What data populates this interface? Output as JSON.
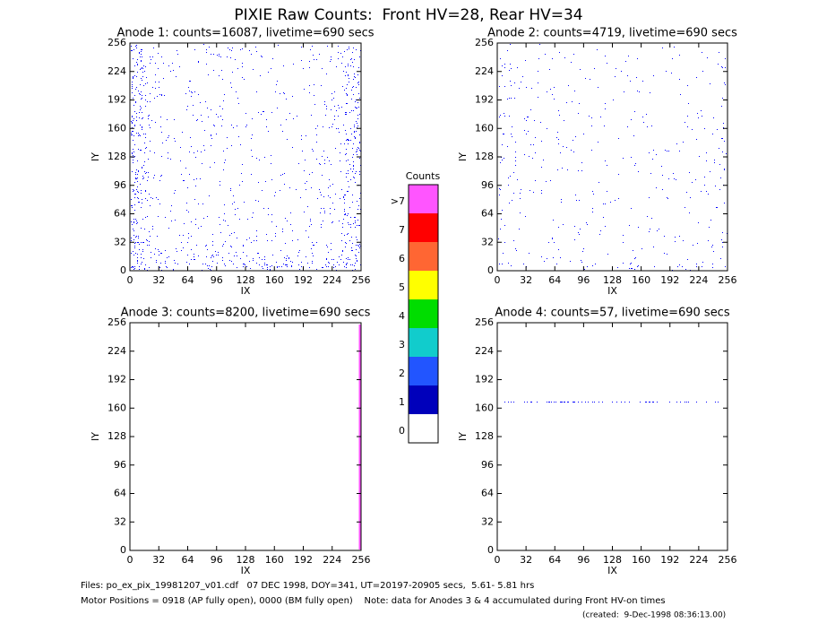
{
  "title": "PIXIE Raw Counts:  Front HV=28, Rear HV=34",
  "panels": [
    {
      "title": "Anode 1: counts=16087, livetime=690 secs",
      "xlabel": "IX",
      "ylabel": "IY",
      "xlim": [
        0,
        256
      ],
      "ylim": [
        0,
        256
      ],
      "xticks": [
        0,
        32,
        64,
        96,
        128,
        160,
        192,
        224,
        256
      ],
      "yticks": [
        0,
        32,
        64,
        96,
        128,
        160,
        192,
        224,
        256
      ]
    },
    {
      "title": "Anode 2: counts=4719, livetime=690 secs",
      "xlabel": "IX",
      "ylabel": "IY",
      "xlim": [
        0,
        256
      ],
      "ylim": [
        0,
        256
      ],
      "xticks": [
        0,
        32,
        64,
        96,
        128,
        160,
        192,
        224,
        256
      ],
      "yticks": [
        0,
        32,
        64,
        96,
        128,
        160,
        192,
        224,
        256
      ]
    },
    {
      "title": "Anode 3: counts=8200, livetime=690 secs",
      "xlabel": "IX",
      "ylabel": "IY",
      "xlim": [
        0,
        256
      ],
      "ylim": [
        0,
        256
      ],
      "xticks": [
        0,
        32,
        64,
        96,
        128,
        160,
        192,
        224,
        256
      ],
      "yticks": [
        0,
        32,
        64,
        96,
        128,
        160,
        192,
        224,
        256
      ]
    },
    {
      "title": "Anode 4: counts=57, livetime=690 secs",
      "xlabel": "IX",
      "ylabel": "IY",
      "xlim": [
        0,
        256
      ],
      "ylim": [
        0,
        256
      ],
      "xticks": [
        0,
        32,
        64,
        96,
        128,
        160,
        192,
        224,
        256
      ],
      "yticks": [
        0,
        32,
        64,
        96,
        128,
        160,
        192,
        224,
        256
      ]
    }
  ],
  "colorbar": {
    "title": "Counts",
    "labels": [
      ">7",
      "7",
      "6",
      "5",
      "4",
      "3",
      "2",
      "1",
      "0"
    ],
    "colors": [
      "#ff55ff",
      "#ff0000",
      "#ff6633",
      "#ffff00",
      "#00dd00",
      "#11cccc",
      "#2255ff",
      "#0000bb",
      "#ffffff"
    ]
  },
  "footer": [
    "Files: po_ex_pix_19981207_v01.cdf   07 DEC 1998, DOY=341, UT=20197-20905 secs,  5.61- 5.81 hrs",
    "Motor Positions = 0918 (AP fully open), 0000 (BM fully open)    Note: data for Anodes 3 & 4 accumulated during Front HV-on times",
    "(created:  9-Dec-1998 08:36:13.00)"
  ]
}
